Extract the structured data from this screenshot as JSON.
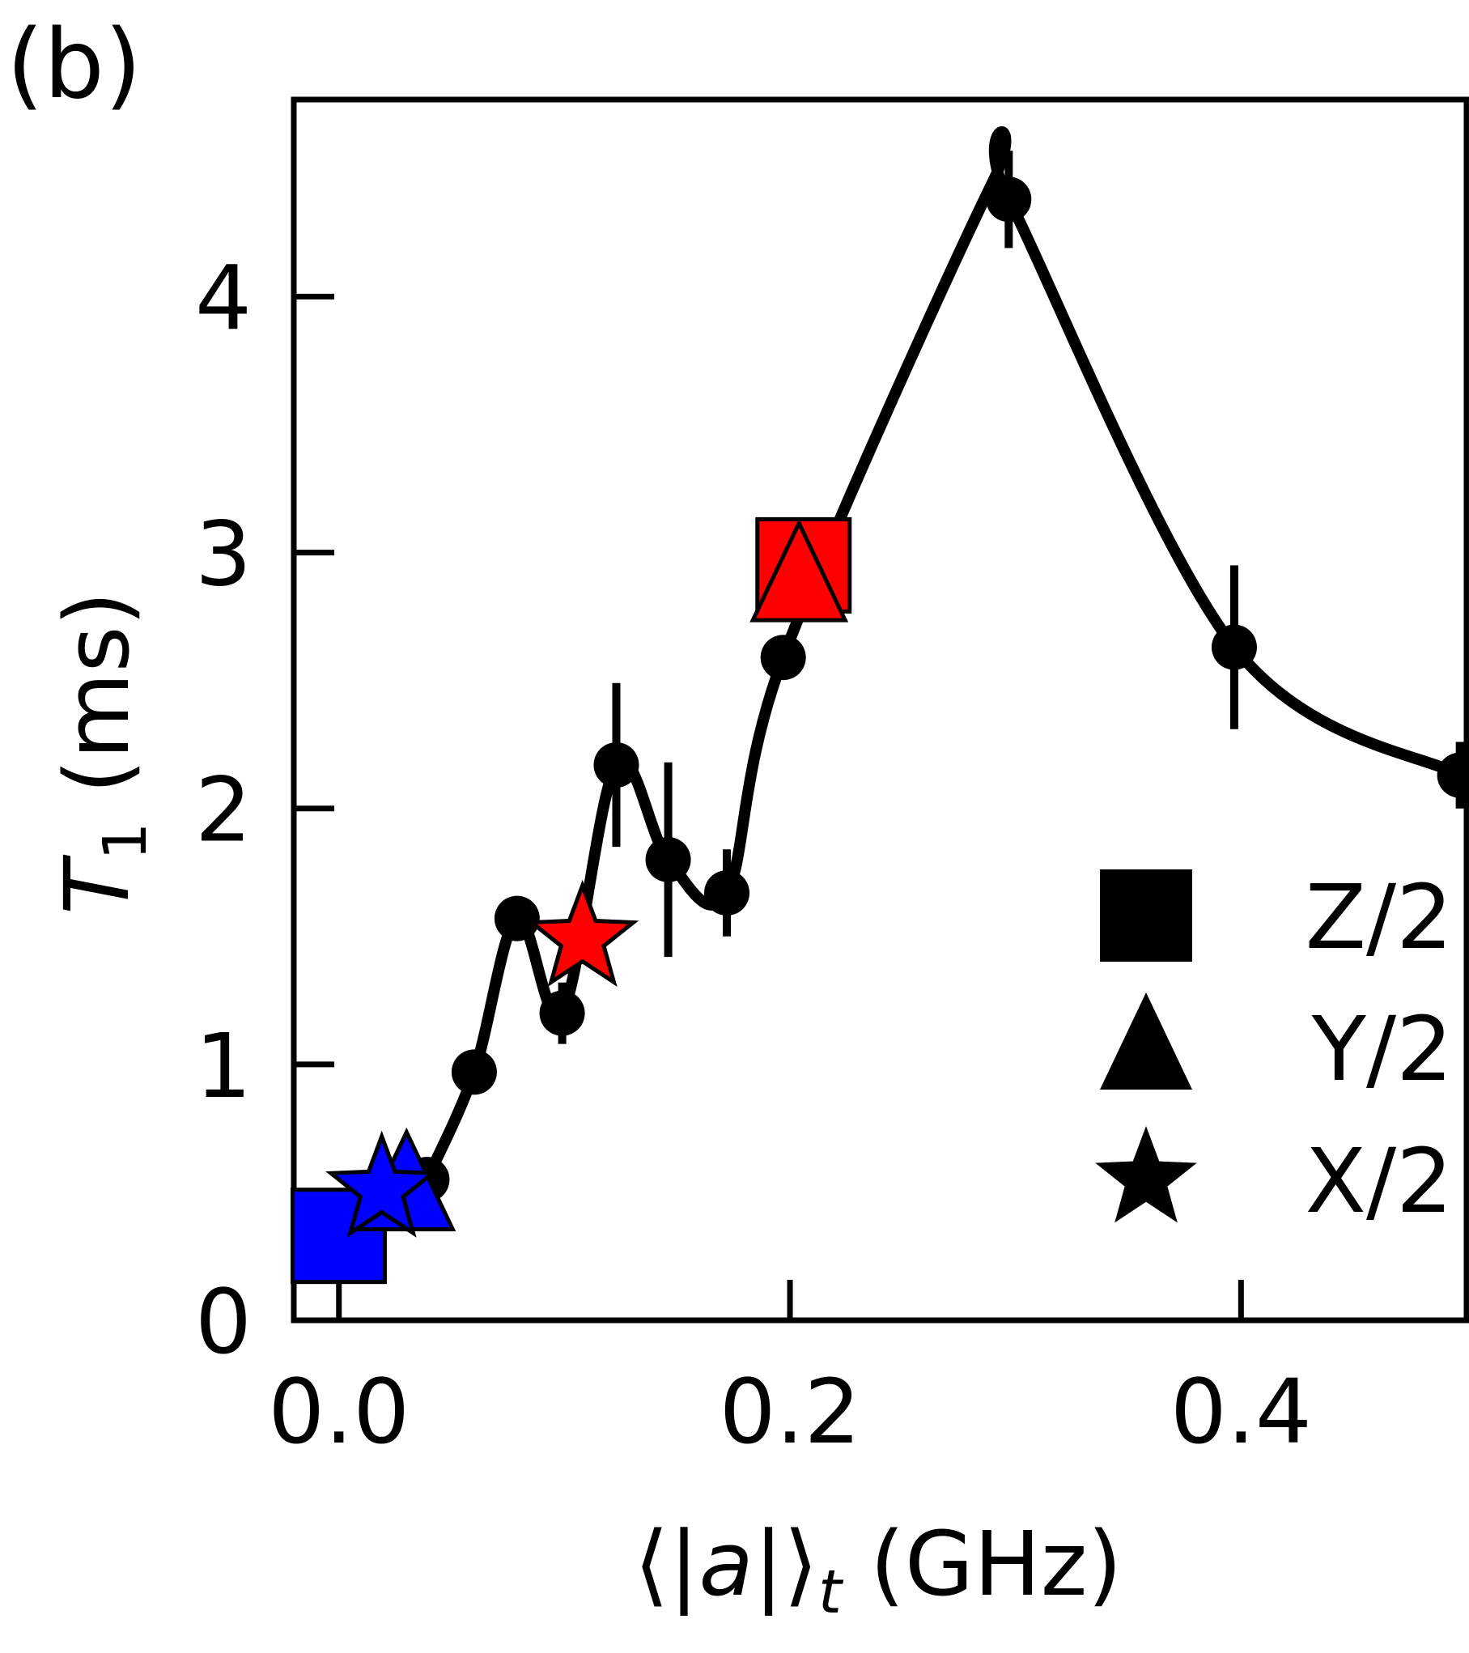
{
  "panel_label": "(b)",
  "chart_data": {
    "type": "scatter",
    "xlabel_parts": {
      "open": "⟨|",
      "var": "a",
      "close": "|⟩",
      "sub": "t",
      "unit": " (GHz)"
    },
    "ylabel_parts": {
      "var": "T",
      "sub": "1",
      "unit": " (ms)"
    },
    "xlim": [
      -0.02,
      0.5
    ],
    "ylim": [
      0,
      4.77
    ],
    "xticks": [
      0.0,
      0.2,
      0.4
    ],
    "xtick_labels": [
      "0.0",
      "0.2",
      "0.4"
    ],
    "yticks": [
      0,
      1,
      2,
      3,
      4
    ],
    "ytick_labels": [
      "0",
      "1",
      "2",
      "3",
      "4"
    ],
    "grid": false,
    "legend_position": "right",
    "colors": {
      "black": "#000000",
      "blue": "#0000ff",
      "red": "#ff0000"
    },
    "series": [
      {
        "marker": "circle",
        "points": [
          {
            "x": 0.039,
            "y": 0.55,
            "err": 0.03
          },
          {
            "x": 0.06,
            "y": 0.97,
            "err": 0.03
          },
          {
            "x": 0.079,
            "y": 1.57,
            "err": 0.04
          },
          {
            "x": 0.099,
            "y": 1.2,
            "err": 0.12
          },
          {
            "x": 0.123,
            "y": 2.17,
            "err": 0.32
          },
          {
            "x": 0.146,
            "y": 1.8,
            "err": 0.38
          },
          {
            "x": 0.172,
            "y": 1.67,
            "err": 0.17
          },
          {
            "x": 0.197,
            "y": 2.59,
            "err": 0.06
          },
          {
            "x": 0.297,
            "y": 4.38,
            "err": 0.19
          },
          {
            "x": 0.397,
            "y": 2.63,
            "err": 0.32
          },
          {
            "x": 0.497,
            "y": 2.13,
            "err": 0.13
          }
        ]
      },
      {
        "name": "Z/2",
        "marker": "square",
        "points": [
          {
            "x": -0.0001,
            "y": 0.33,
            "color": "blue"
          },
          {
            "x": 0.206,
            "y": 2.95,
            "color": "red"
          }
        ]
      },
      {
        "name": "Y/2",
        "marker": "triangle",
        "points": [
          {
            "x": 0.03,
            "y": 0.52,
            "color": "blue"
          },
          {
            "x": 0.204,
            "y": 2.9,
            "color": "red"
          }
        ]
      },
      {
        "name": "X/2",
        "marker": "star",
        "points": [
          {
            "x": 0.019,
            "y": 0.51,
            "color": "blue"
          },
          {
            "x": 0.108,
            "y": 1.49,
            "color": "red"
          }
        ]
      }
    ],
    "curve": {
      "style": "smooth line through circle points",
      "peak": {
        "x": 0.29,
        "y": 4.45
      }
    }
  }
}
